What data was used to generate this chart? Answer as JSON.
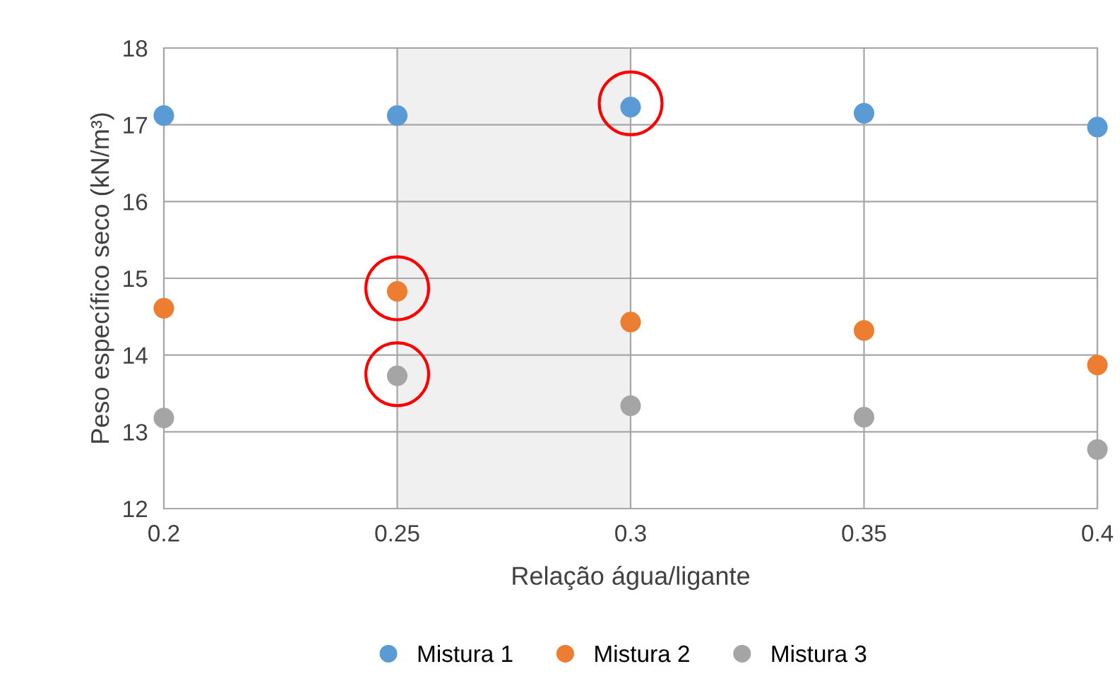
{
  "chart_data": {
    "type": "scatter",
    "xlabel": "Relação água/ligante",
    "ylabel": "Peso específico seco (kN/m³)",
    "x": [
      0.2,
      0.25,
      0.3,
      0.35,
      0.4
    ],
    "series": [
      {
        "name": "Mistura 1",
        "color": "#5b9bd5",
        "values": [
          17.12,
          17.12,
          17.23,
          17.15,
          16.97
        ]
      },
      {
        "name": "Mistura 2",
        "color": "#ed7d31",
        "values": [
          14.61,
          14.83,
          14.43,
          14.32,
          13.87
        ]
      },
      {
        "name": "Mistura 3",
        "color": "#a5a5a5",
        "values": [
          13.18,
          13.73,
          13.34,
          13.19,
          12.77
        ]
      },
      {
        "color": "#ff0000",
        "values": [
          null,
          14.87,
          17.28,
          null,
          null
        ]
      },
      {
        "color": "#ff0000",
        "values": [
          null,
          13.75,
          null,
          null,
          null
        ]
      }
    ],
    "xlim": [
      0.2,
      0.4
    ],
    "xticks": [
      0.2,
      0.25,
      0.3,
      0.35,
      0.4
    ],
    "ylim": [
      12,
      18
    ],
    "yticks": [
      12,
      13,
      14,
      15,
      16,
      17,
      18
    ],
    "bands": [
      {
        "axis": "x",
        "from": 0.25,
        "to": 0.3,
        "color": "#f0f0f0"
      }
    ],
    "grid": true,
    "legend": "bottom",
    "marker": "circle"
  }
}
